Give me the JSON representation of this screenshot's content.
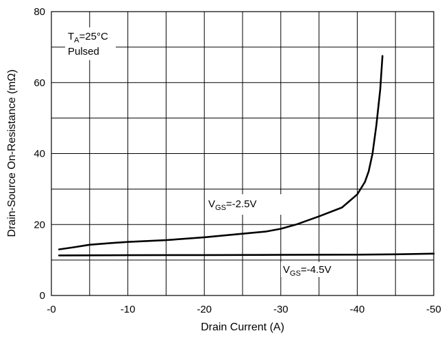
{
  "chart_data": {
    "type": "line",
    "xlabel": "Drain Current (A)",
    "ylabel": "Drain-Source On-Resistance (mΩ)",
    "xlim": [
      0,
      -50
    ],
    "ylim": [
      0,
      80
    ],
    "x_ticks": [
      0,
      -10,
      -20,
      -30,
      -40,
      -50
    ],
    "x_tick_labels": [
      "-0",
      "-10",
      "-20",
      "-30",
      "-40",
      "-50"
    ],
    "y_ticks": [
      0,
      20,
      40,
      60,
      80
    ],
    "y_tick_labels": [
      "0",
      "20",
      "40",
      "60",
      "80"
    ],
    "grid": true,
    "annotations": {
      "ta_main": "T",
      "ta_sub": "A",
      "ta_value": "=25°C",
      "pulsed": "Pulsed"
    },
    "series": [
      {
        "label_main": "V",
        "label_sub": "GS",
        "label_value": "=-2.5V",
        "x": [
          -1,
          -3,
          -5,
          -8,
          -10,
          -15,
          -20,
          -25,
          -28,
          -30,
          -32,
          -35,
          -38,
          -40,
          -41,
          -41.5,
          -42,
          -42.5,
          -43,
          -43.3
        ],
        "y": [
          13,
          13.6,
          14.3,
          14.8,
          15.1,
          15.6,
          16.4,
          17.4,
          18.0,
          18.8,
          20.0,
          22.3,
          24.8,
          28.5,
          32.0,
          35.0,
          40.0,
          48.0,
          58.0,
          67.5
        ]
      },
      {
        "label_main": "V",
        "label_sub": "GS",
        "label_value": "=-4.5V",
        "x": [
          -1,
          -10,
          -20,
          -30,
          -40,
          -45,
          -50
        ],
        "y": [
          11.3,
          11.35,
          11.4,
          11.45,
          11.5,
          11.6,
          11.8
        ]
      }
    ]
  }
}
